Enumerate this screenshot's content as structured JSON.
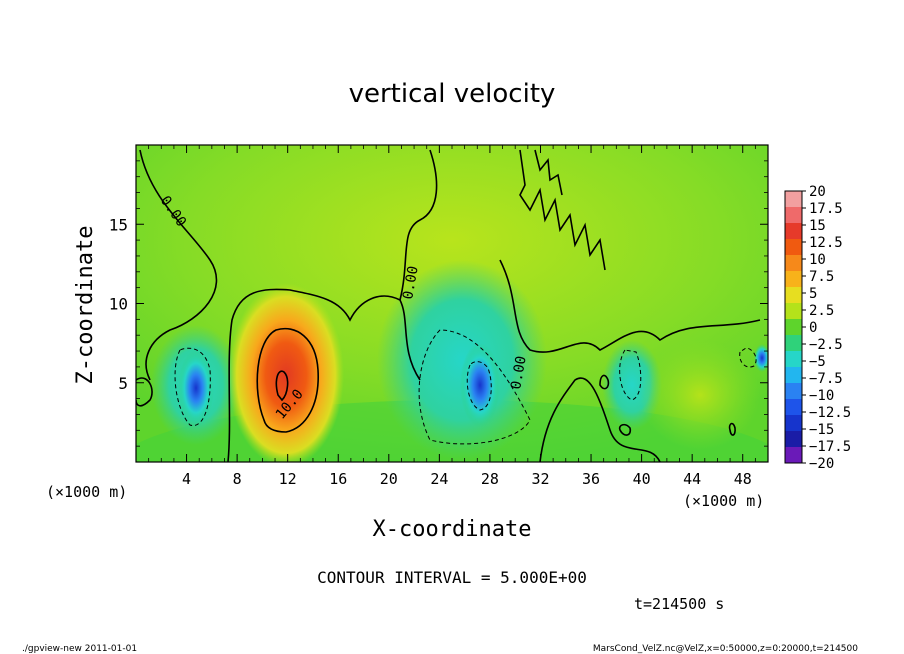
{
  "chart_data": {
    "type": "heatmap",
    "title": "vertical velocity",
    "xlabel": "X-coordinate",
    "ylabel": "Z-coordinate",
    "x_unit_label_left": "(×1000 m)",
    "x_unit_label_right": "(×1000 m)",
    "xlim": [
      0,
      50
    ],
    "ylim": [
      0,
      20
    ],
    "x_ticks": [
      4,
      8,
      12,
      16,
      20,
      24,
      28,
      32,
      36,
      40,
      44,
      48
    ],
    "y_ticks": [
      5,
      10,
      15
    ],
    "colorbar": {
      "labels": [
        "20",
        "17.5",
        "15",
        "12.5",
        "10",
        "7.5",
        "5",
        "2.5",
        "0",
        "−2.5",
        "−5",
        "−7.5",
        "−10",
        "−12.5",
        "−15",
        "−17.5",
        "−20"
      ],
      "colors": [
        "#f2a0a0",
        "#ef6a6a",
        "#e63a2a",
        "#f05a10",
        "#f6891a",
        "#f8b21a",
        "#e7de20",
        "#b4e21a",
        "#5ed42c",
        "#2fd27a",
        "#26d6c8",
        "#22b6ef",
        "#2a82f2",
        "#1e54ea",
        "#1634cc",
        "#1a1ca6",
        "#6a1ab8"
      ]
    },
    "features": [
      {
        "kind": "updraft",
        "x": 11.5,
        "z": 5.5,
        "peak": 13
      },
      {
        "kind": "downdraft",
        "x": 5.0,
        "z": 4.5,
        "peak": -11
      },
      {
        "kind": "downdraft",
        "x": 27.3,
        "z": 4.8,
        "peak": -12
      },
      {
        "kind": "downdraft",
        "x": 39.0,
        "z": 5.0,
        "peak": -5
      }
    ],
    "contour_labels": [
      "0.00",
      "0.00",
      "10.0",
      "0.00"
    ],
    "contour_interval_text": "CONTOUR INTERVAL = 5.000E+00",
    "time_text": "t=214500 s"
  },
  "footer": {
    "left": "./gpview-new   2011-01-01",
    "right": "MarsCond_VelZ.nc@VelZ,x=0:50000,z=0:20000,t=214500"
  }
}
